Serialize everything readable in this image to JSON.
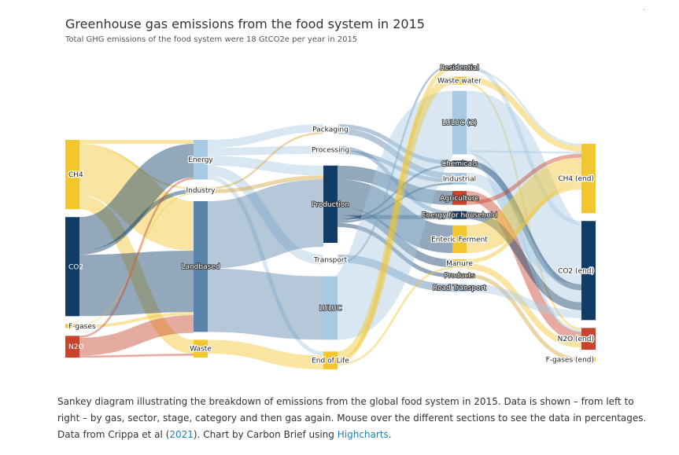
{
  "chart_data": {
    "type": "sankey",
    "title": "Greenhouse gas emissions from the food system in 2015",
    "subtitle": "Total GHG emissions of the food system were 18 GtCO2e per year in 2015",
    "nodes": [
      {
        "id": "ch4",
        "label": "CH4",
        "column": 0,
        "value": 35,
        "color": "#f2c62f"
      },
      {
        "id": "co2",
        "label": "CO2",
        "column": 0,
        "value": 50,
        "color": "#0f3d68"
      },
      {
        "id": "fgas",
        "label": "F-gases",
        "column": 0,
        "value": 2,
        "color": "#f2c62f"
      },
      {
        "id": "n2o",
        "label": "N2O",
        "column": 0,
        "value": 11,
        "color": "#c8442c"
      },
      {
        "id": "energy",
        "label": "Energy",
        "column": 1,
        "value": 20,
        "color": "#a8c9e2"
      },
      {
        "id": "industry",
        "label": "Industry",
        "column": 1,
        "value": 3,
        "color": "#d4a437"
      },
      {
        "id": "landbased",
        "label": "Landbased",
        "column": 1,
        "value": 66,
        "color": "#5b84ad"
      },
      {
        "id": "waste",
        "label": "Waste",
        "column": 1,
        "value": 9,
        "color": "#f2c62f"
      },
      {
        "id": "packaging",
        "label": "Packaging",
        "column": 2,
        "value": 5,
        "color": "#ffffff"
      },
      {
        "id": "processing",
        "label": "Processing",
        "column": 2,
        "value": 4,
        "color": "#ffffff"
      },
      {
        "id": "production",
        "label": "Production",
        "column": 2,
        "value": 39,
        "color": "#0f3d68"
      },
      {
        "id": "transport",
        "label": "Transport",
        "column": 2,
        "value": 5,
        "color": "#ffffff"
      },
      {
        "id": "luluc",
        "label": "LULUC",
        "column": 2,
        "value": 32,
        "color": "#a8c9e2"
      },
      {
        "id": "endoflife",
        "label": "End of Life",
        "column": 2,
        "value": 9,
        "color": "#f2c62f"
      },
      {
        "id": "residential",
        "label": "Residential",
        "column": 3,
        "value": 3,
        "color": "#a8c9e2"
      },
      {
        "id": "wastewater",
        "label": "Waste water",
        "column": 3,
        "value": 4,
        "color": "#f2c62f"
      },
      {
        "id": "luluc2",
        "label": "LULUC (2)",
        "column": 3,
        "value": 32,
        "color": "#a8c9e2"
      },
      {
        "id": "chemicals",
        "label": "Chemicals",
        "column": 3,
        "value": 3,
        "color": "#0f3d68"
      },
      {
        "id": "industrial",
        "label": "Industrial",
        "column": 3,
        "value": 6,
        "color": "#a8c9e2"
      },
      {
        "id": "agriculture",
        "label": "Agriculture",
        "column": 3,
        "value": 7,
        "color": "#c8442c"
      },
      {
        "id": "energyhousehold",
        "label": "Energy for household",
        "column": 3,
        "value": 4,
        "color": "#0f3d68"
      },
      {
        "id": "enteric",
        "label": "Enteric Ferment",
        "column": 3,
        "value": 14,
        "color": "#f2c62f"
      },
      {
        "id": "manure",
        "label": "Manure",
        "column": 3,
        "value": 4,
        "color": "#f2c62f"
      },
      {
        "id": "products",
        "label": "Products",
        "column": 3,
        "value": 2,
        "color": "#d4a437"
      },
      {
        "id": "roadtransport",
        "label": "Road Transport",
        "column": 3,
        "value": 4,
        "color": "#a8c9e2"
      },
      {
        "id": "ch4end",
        "label": "CH4 (end)",
        "column": 4,
        "value": 35,
        "color": "#f2c62f"
      },
      {
        "id": "co2end",
        "label": "CO2 (end)",
        "column": 4,
        "value": 50,
        "color": "#0f3d68"
      },
      {
        "id": "n2oend",
        "label": "N2O (end)",
        "column": 4,
        "value": 11,
        "color": "#c8442c"
      },
      {
        "id": "fgasend",
        "label": "F-gases (end)",
        "column": 4,
        "value": 2,
        "color": "#f2c62f"
      }
    ],
    "links": [
      {
        "from": "ch4",
        "to": "energy",
        "value": 2
      },
      {
        "from": "ch4",
        "to": "industry",
        "value": 1
      },
      {
        "from": "ch4",
        "to": "landbased",
        "value": 25
      },
      {
        "from": "ch4",
        "to": "waste",
        "value": 7
      },
      {
        "from": "co2",
        "to": "energy",
        "value": 17
      },
      {
        "from": "co2",
        "to": "industry",
        "value": 2
      },
      {
        "from": "co2",
        "to": "landbased",
        "value": 31
      },
      {
        "from": "fgas",
        "to": "industry",
        "value": 0.5
      },
      {
        "from": "fgas",
        "to": "landbased",
        "value": 1.5
      },
      {
        "from": "n2o",
        "to": "energy",
        "value": 1
      },
      {
        "from": "n2o",
        "to": "landbased",
        "value": 9
      },
      {
        "from": "n2o",
        "to": "waste",
        "value": 1
      },
      {
        "from": "energy",
        "to": "packaging",
        "value": 4
      },
      {
        "from": "energy",
        "to": "processing",
        "value": 4
      },
      {
        "from": "energy",
        "to": "production",
        "value": 5
      },
      {
        "from": "energy",
        "to": "transport",
        "value": 5
      },
      {
        "from": "energy",
        "to": "endoflife",
        "value": 2
      },
      {
        "from": "industry",
        "to": "packaging",
        "value": 1
      },
      {
        "from": "industry",
        "to": "production",
        "value": 2
      },
      {
        "from": "landbased",
        "to": "production",
        "value": 34
      },
      {
        "from": "landbased",
        "to": "luluc",
        "value": 32
      },
      {
        "from": "waste",
        "to": "endoflife",
        "value": 7
      },
      {
        "from": "packaging",
        "to": "chemicals",
        "value": 2
      },
      {
        "from": "packaging",
        "to": "industrial",
        "value": 3
      },
      {
        "from": "processing",
        "to": "energyhousehold",
        "value": 2
      },
      {
        "from": "processing",
        "to": "industrial",
        "value": 2
      },
      {
        "from": "production",
        "to": "agriculture",
        "value": 7
      },
      {
        "from": "production",
        "to": "enteric",
        "value": 14
      },
      {
        "from": "production",
        "to": "manure",
        "value": 4
      },
      {
        "from": "production",
        "to": "energyhousehold",
        "value": 2
      },
      {
        "from": "production",
        "to": "chemicals",
        "value": 1
      },
      {
        "from": "production",
        "to": "industrial",
        "value": 1
      },
      {
        "from": "production",
        "to": "products",
        "value": 2
      },
      {
        "from": "transport",
        "to": "roadtransport",
        "value": 4
      },
      {
        "from": "transport",
        "to": "residential",
        "value": 1
      },
      {
        "from": "luluc",
        "to": "luluc2",
        "value": 32
      },
      {
        "from": "endoflife",
        "to": "wastewater",
        "value": 4
      },
      {
        "from": "endoflife",
        "to": "residential",
        "value": 2
      },
      {
        "from": "endoflife",
        "to": "manure",
        "value": 1
      },
      {
        "from": "residential",
        "to": "co2end",
        "value": 2
      },
      {
        "from": "residential",
        "to": "ch4end",
        "value": 1
      },
      {
        "from": "wastewater",
        "to": "ch4end",
        "value": 3
      },
      {
        "from": "wastewater",
        "to": "n2oend",
        "value": 1
      },
      {
        "from": "luluc2",
        "to": "co2end",
        "value": 30
      },
      {
        "from": "luluc2",
        "to": "ch4end",
        "value": 1
      },
      {
        "from": "luluc2",
        "to": "n2oend",
        "value": 1
      },
      {
        "from": "chemicals",
        "to": "co2end",
        "value": 3
      },
      {
        "from": "industrial",
        "to": "co2end",
        "value": 6
      },
      {
        "from": "agriculture",
        "to": "n2oend",
        "value": 5
      },
      {
        "from": "agriculture",
        "to": "ch4end",
        "value": 2
      },
      {
        "from": "energyhousehold",
        "to": "co2end",
        "value": 4
      },
      {
        "from": "enteric",
        "to": "ch4end",
        "value": 14
      },
      {
        "from": "manure",
        "to": "ch4end",
        "value": 2
      },
      {
        "from": "manure",
        "to": "n2oend",
        "value": 3
      },
      {
        "from": "products",
        "to": "fgasend",
        "value": 2
      },
      {
        "from": "roadtransport",
        "to": "co2end",
        "value": 4
      }
    ]
  },
  "caption": {
    "text_before": "Sankey diagram illustrating the breakdown of emissions from the global food system in 2015. Data is shown – from left to right – by gas, sector, stage, category and then gas again. Mouse over the different sections to see the data in percentages. Data from Crippa et al (",
    "link1": "2021",
    "text_middle": "). Chart by Carbon Brief using ",
    "link2": "Highcharts",
    "text_after": "."
  },
  "colors": {
    "yellow": "#f2c62f",
    "navy": "#0f3d68",
    "mid_blue": "#5b84ad",
    "light_blue": "#a8c9e2",
    "red": "#c8442c",
    "gold": "#d4a437"
  }
}
